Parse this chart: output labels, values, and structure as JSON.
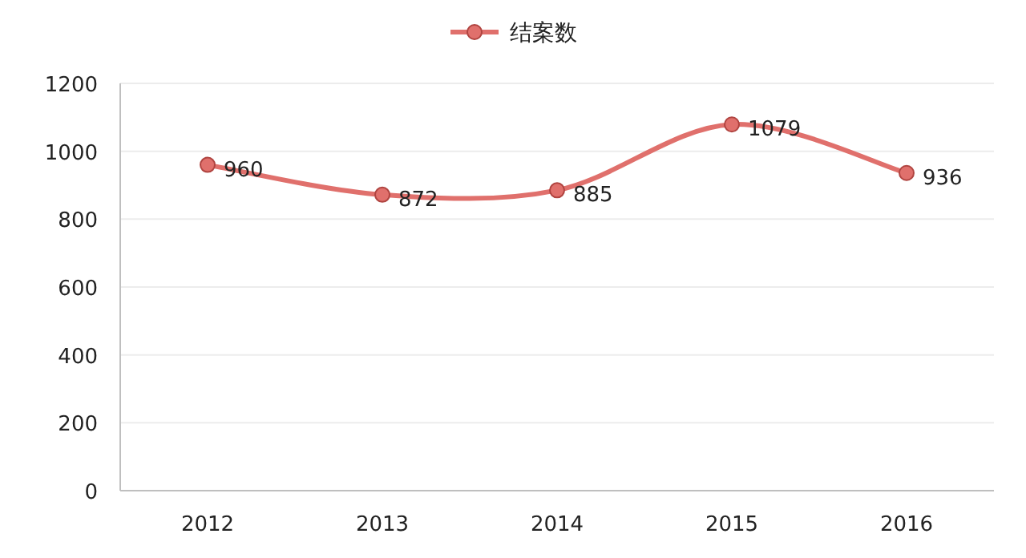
{
  "chart_data": {
    "type": "line",
    "categories": [
      "2012",
      "2013",
      "2014",
      "2015",
      "2016"
    ],
    "series": [
      {
        "name": "结案数",
        "color": "#e0706c",
        "values": [
          960,
          872,
          885,
          1079,
          936
        ]
      }
    ],
    "ylim": [
      0,
      1200
    ],
    "yticks": [
      0,
      200,
      400,
      600,
      800,
      1000,
      1200
    ],
    "grid": "y",
    "legend": "top",
    "marker": "circle",
    "data_labels": true
  }
}
